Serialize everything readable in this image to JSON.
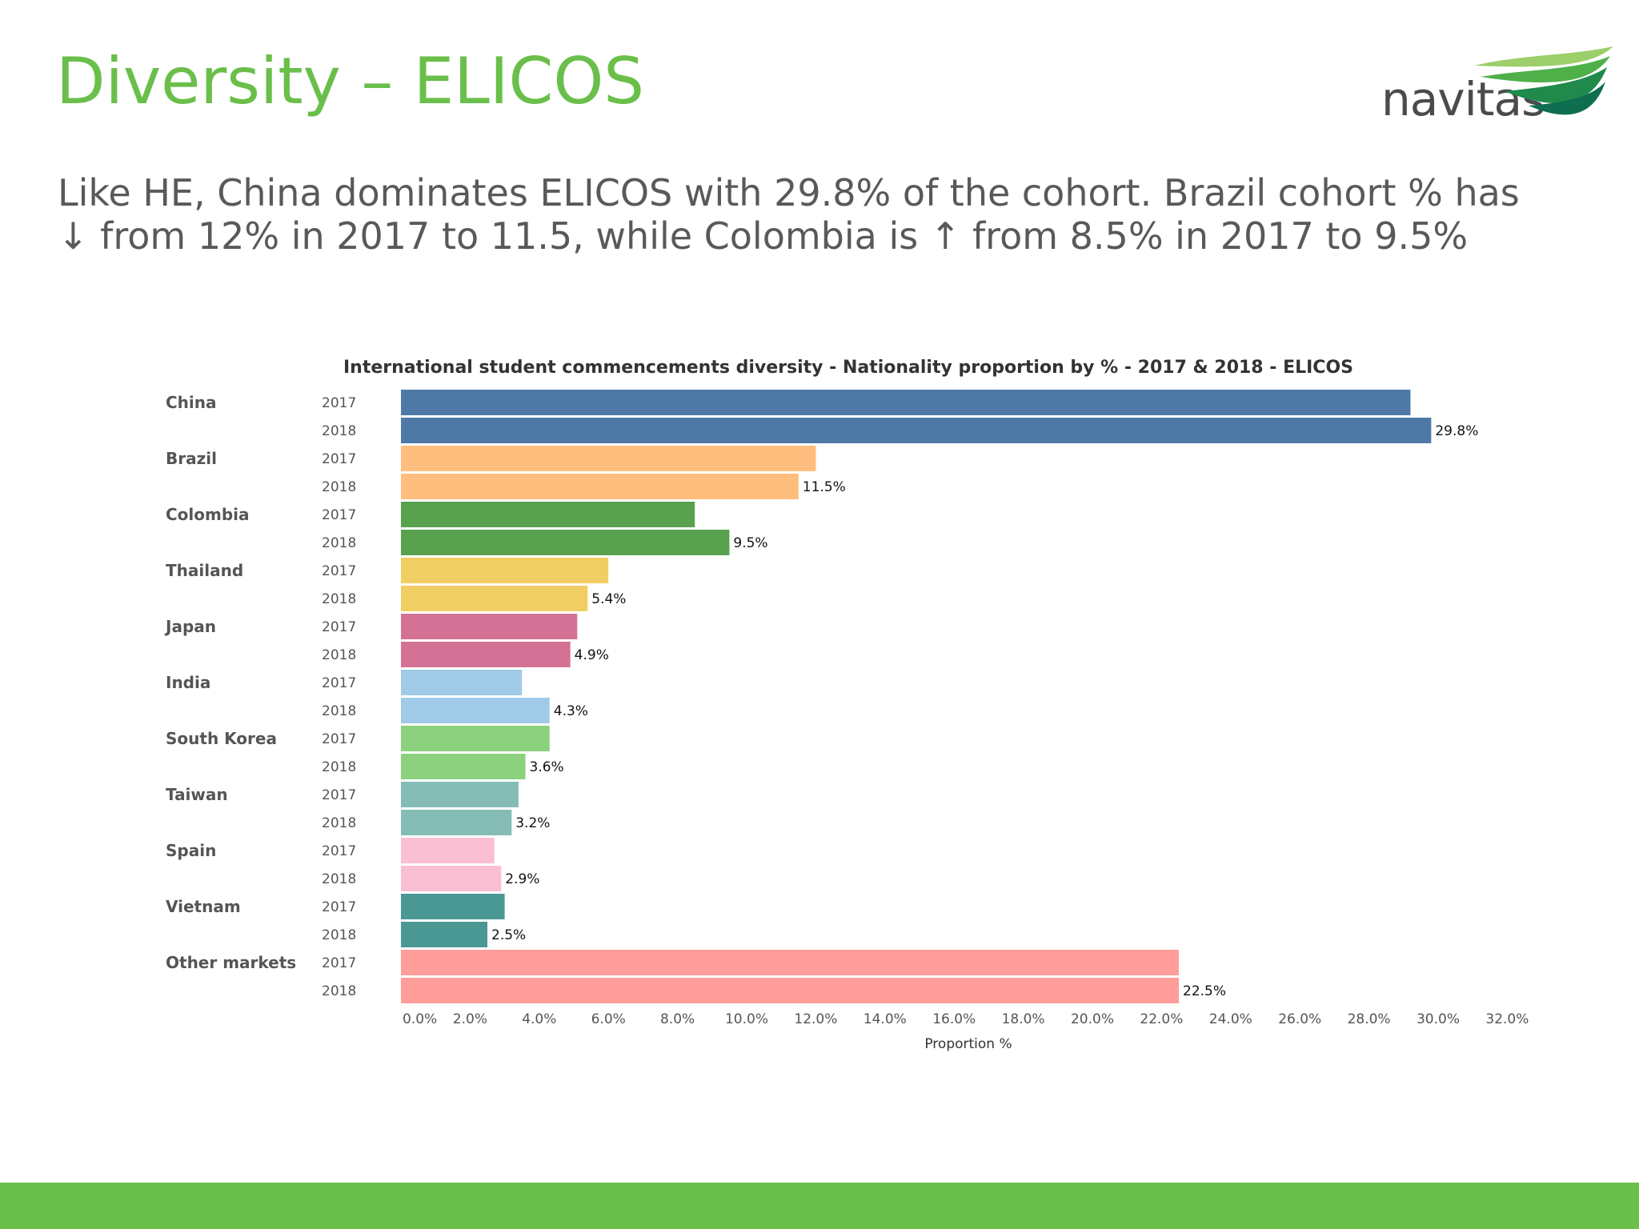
{
  "slide": {
    "title": "Diversity – ELICOS",
    "body": "Like HE, China dominates ELICOS with 29.8% of the cohort. Brazil cohort % has ↓ from 12% in 2017 to 11.5, while Colombia is ↑ from 8.5% in 2017 to 9.5%",
    "logo_text": "navitas",
    "accent_color": "#6abf4b",
    "footer_color": "#6abf4b"
  },
  "chart_data": {
    "type": "bar",
    "orientation": "horizontal",
    "title": "International student commencements diversity -  Nationality proportion by % - 2017 & 2018 - ELICOS",
    "xlabel": "Proportion %",
    "ylabel": "",
    "xlim": [
      0,
      32
    ],
    "x_ticks": [
      "0.0%",
      "2.0%",
      "4.0%",
      "6.0%",
      "8.0%",
      "10.0%",
      "12.0%",
      "14.0%",
      "16.0%",
      "18.0%",
      "20.0%",
      "22.0%",
      "24.0%",
      "26.0%",
      "28.0%",
      "30.0%",
      "32.0%"
    ],
    "x_tick_values": [
      0,
      2,
      4,
      6,
      8,
      10,
      12,
      14,
      16,
      18,
      20,
      22,
      24,
      26,
      28,
      30,
      32
    ],
    "grid": false,
    "legend": "none",
    "groups": [
      {
        "name": "China",
        "color": "#4e79a7",
        "bars": [
          {
            "year": "2017",
            "value": 29.2
          },
          {
            "year": "2018",
            "value": 29.8,
            "label": "29.8%"
          }
        ]
      },
      {
        "name": "Brazil",
        "color": "#ffbe7d",
        "bars": [
          {
            "year": "2017",
            "value": 12.0
          },
          {
            "year": "2018",
            "value": 11.5,
            "label": "11.5%"
          }
        ]
      },
      {
        "name": "Colombia",
        "color": "#59a14f",
        "bars": [
          {
            "year": "2017",
            "value": 8.5
          },
          {
            "year": "2018",
            "value": 9.5,
            "label": "9.5%"
          }
        ]
      },
      {
        "name": "Thailand",
        "color": "#f1ce63",
        "bars": [
          {
            "year": "2017",
            "value": 6.0
          },
          {
            "year": "2018",
            "value": 5.4,
            "label": "5.4%"
          }
        ]
      },
      {
        "name": "Japan",
        "color": "#d37295",
        "bars": [
          {
            "year": "2017",
            "value": 5.1
          },
          {
            "year": "2018",
            "value": 4.9,
            "label": "4.9%"
          }
        ]
      },
      {
        "name": "India",
        "color": "#a0cbe8",
        "bars": [
          {
            "year": "2017",
            "value": 3.5
          },
          {
            "year": "2018",
            "value": 4.3,
            "label": "4.3%"
          }
        ]
      },
      {
        "name": "South Korea",
        "color": "#8cd17d",
        "bars": [
          {
            "year": "2017",
            "value": 4.3
          },
          {
            "year": "2018",
            "value": 3.6,
            "label": "3.6%"
          }
        ]
      },
      {
        "name": "Taiwan",
        "color": "#86bcb6",
        "bars": [
          {
            "year": "2017",
            "value": 3.4
          },
          {
            "year": "2018",
            "value": 3.2,
            "label": "3.2%"
          }
        ]
      },
      {
        "name": "Spain",
        "color": "#fabfd2",
        "bars": [
          {
            "year": "2017",
            "value": 2.7
          },
          {
            "year": "2018",
            "value": 2.9,
            "label": "2.9%"
          }
        ]
      },
      {
        "name": "Vietnam",
        "color": "#499894",
        "bars": [
          {
            "year": "2017",
            "value": 3.0
          },
          {
            "year": "2018",
            "value": 2.5,
            "label": "2.5%"
          }
        ]
      },
      {
        "name": "Other markets",
        "color": "#ff9d9a",
        "bars": [
          {
            "year": "2017",
            "value": 22.5
          },
          {
            "year": "2018",
            "value": 22.5,
            "label": "22.5%"
          }
        ]
      }
    ]
  }
}
